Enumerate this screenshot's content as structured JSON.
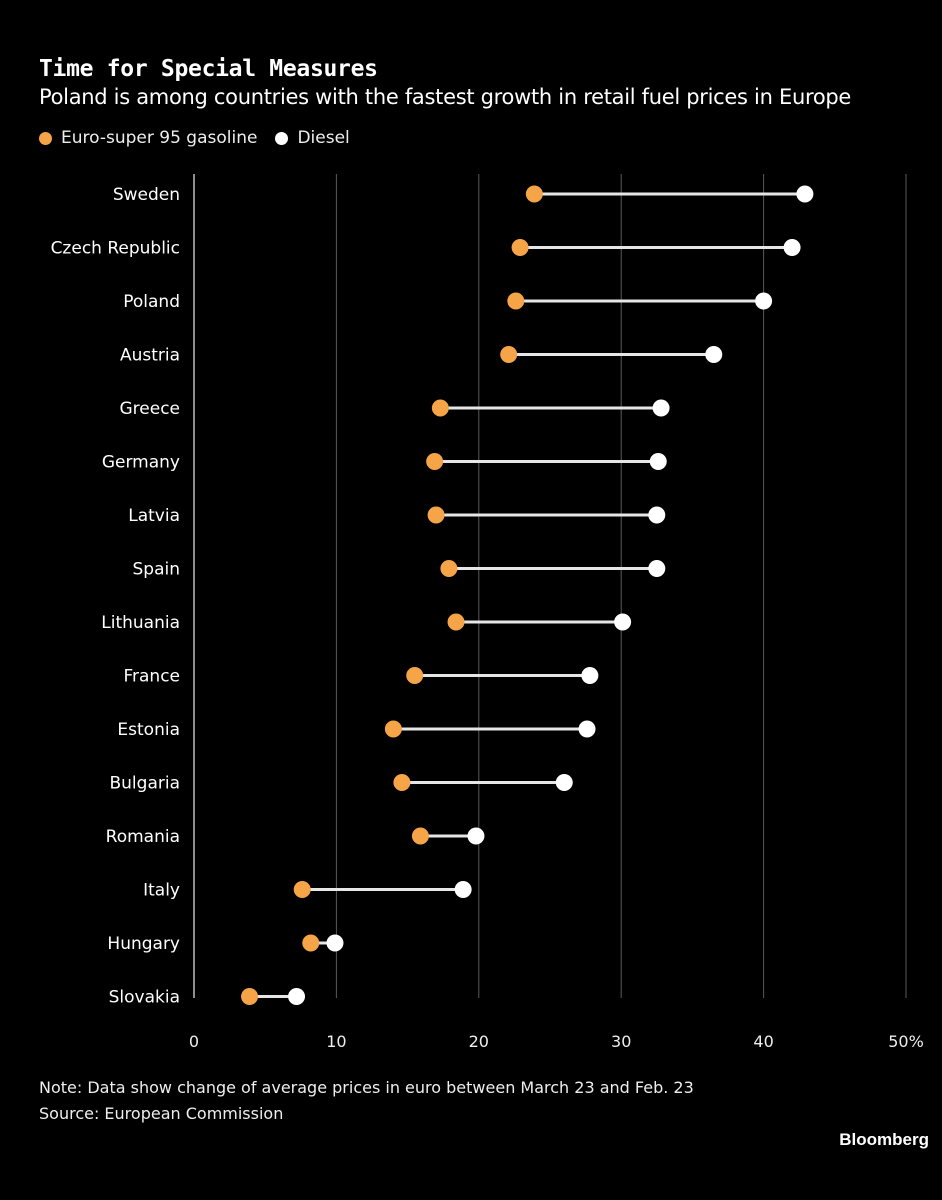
{
  "header": {
    "title": "Time for Special Measures",
    "subtitle": "Poland is among countries with the fastest growth in retail fuel prices in Europe"
  },
  "legend": {
    "gasoline_label": "Euro-super 95 gasoline",
    "diesel_label": "Diesel"
  },
  "footer": {
    "note": "Note: Data show change of average prices in euro between March 23 and Feb. 23",
    "source": "Source: European Commission",
    "brand": "Bloomberg"
  },
  "colors": {
    "gasoline": "#F5A447",
    "diesel": "#FFFFFF",
    "connector": "#E6E6E6",
    "gridline": "#5A5A5A",
    "axis": "#BDBDBD",
    "background": "#000000"
  },
  "chart_data": {
    "type": "dumbbell",
    "title": "Time for Special Measures",
    "subtitle": "Poland is among countries with the fastest growth in retail fuel prices in Europe",
    "xlabel": "",
    "ylabel": "",
    "xlim": [
      0,
      50
    ],
    "x_ticks": [
      0,
      10,
      20,
      30,
      40,
      50
    ],
    "x_tick_labels": [
      "0",
      "10",
      "20",
      "30",
      "40",
      "50%"
    ],
    "grid": true,
    "legend_position": "top-left",
    "categories": [
      "Sweden",
      "Czech Republic",
      "Poland",
      "Austria",
      "Greece",
      "Germany",
      "Latvia",
      "Spain",
      "Lithuania",
      "France",
      "Estonia",
      "Bulgaria",
      "Romania",
      "Italy",
      "Hungary",
      "Slovakia"
    ],
    "series": [
      {
        "name": "Euro-super 95 gasoline",
        "values": [
          23.9,
          22.9,
          22.6,
          22.1,
          17.3,
          16.9,
          17.0,
          17.9,
          18.4,
          15.5,
          14.0,
          14.6,
          15.9,
          7.6,
          8.2,
          3.9
        ]
      },
      {
        "name": "Diesel",
        "values": [
          42.9,
          42.0,
          40.0,
          36.5,
          32.8,
          32.6,
          32.5,
          32.5,
          30.1,
          27.8,
          27.6,
          26.0,
          19.8,
          18.9,
          9.9,
          7.2
        ]
      }
    ]
  }
}
